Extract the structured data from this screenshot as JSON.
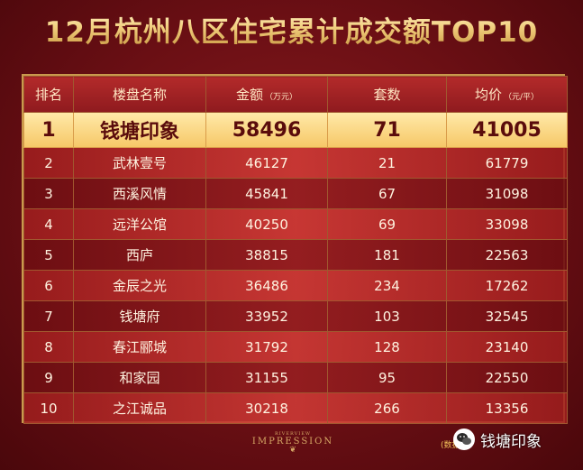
{
  "title": "12月杭州八区住宅累计成交额TOP10",
  "table": {
    "headers": {
      "rank": "排名",
      "project": "楼盘名称",
      "amount": "金额",
      "amount_unit": "（万元）",
      "units": "套数",
      "avg_price": "均价",
      "avg_price_unit": "（元/平）"
    },
    "rows": [
      {
        "rank": "1",
        "name": "钱塘印象",
        "amount": "58496",
        "units": "71",
        "avg": "41005"
      },
      {
        "rank": "2",
        "name": "武林壹号",
        "amount": "46127",
        "units": "21",
        "avg": "61779"
      },
      {
        "rank": "3",
        "name": "西溪风情",
        "amount": "45841",
        "units": "67",
        "avg": "31098"
      },
      {
        "rank": "4",
        "name": "远洋公馆",
        "amount": "40250",
        "units": "69",
        "avg": "33098"
      },
      {
        "rank": "5",
        "name": "西庐",
        "amount": "38815",
        "units": "181",
        "avg": "22563"
      },
      {
        "rank": "6",
        "name": "金辰之光",
        "amount": "36486",
        "units": "234",
        "avg": "17262"
      },
      {
        "rank": "7",
        "name": "钱塘府",
        "amount": "33952",
        "units": "103",
        "avg": "32545"
      },
      {
        "rank": "8",
        "name": "春江郦城",
        "amount": "31792",
        "units": "128",
        "avg": "23140"
      },
      {
        "rank": "9",
        "name": "和家园",
        "amount": "31155",
        "units": "95",
        "avg": "22550"
      },
      {
        "rank": "10",
        "name": "之江诚品",
        "amount": "30218",
        "units": "266",
        "avg": "13356"
      }
    ]
  },
  "logo": {
    "small": "RIVERVIEW",
    "big": "IMPRESSION"
  },
  "footnote": "(数据",
  "wechat": {
    "name": "钱塘印象",
    "icon": "wechat-icon"
  },
  "colors": {
    "background": "#6a0f14",
    "highlight": "#f6c766",
    "gold": "#c99a4d"
  }
}
